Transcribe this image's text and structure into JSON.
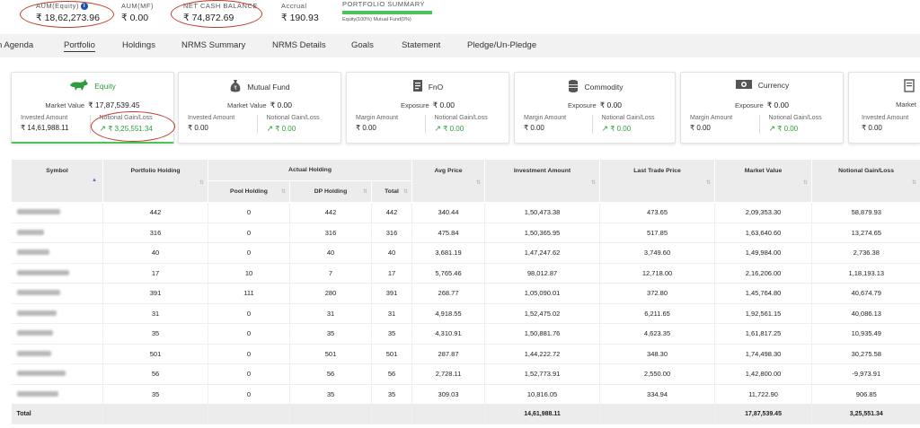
{
  "summary": {
    "aum_equity_label": "AUM(Equity)",
    "aum_equity_value": "₹ 18,62,273.96",
    "aum_mf_label": "AUM(MF)",
    "aum_mf_value": "₹ 0.00",
    "net_cash_label": "NET CASH BALANCE",
    "net_cash_value": "₹ 74,872.69",
    "accrual_label": "Accrual",
    "accrual_value": "₹ 190.93",
    "portfolio_summary_label": "PORTFOLIO SUMMARY",
    "portfolio_summary_legend": "Equity(100%)   Mutual Fund(0%)",
    "equity_share": 1.0
  },
  "tabs": [
    "n Agenda",
    "Portfolio",
    "Holdings",
    "NRMS Summary",
    "NRMS Details",
    "Goals",
    "Statement",
    "Pledge/Un-Pledge"
  ],
  "active_tab": "Portfolio",
  "cards": [
    {
      "title": "Equity",
      "icon": "bull-icon",
      "mv_label": "Market Value",
      "mv_value": "₹ 17,87,539.45",
      "left_label": "Invested Amount",
      "left_value": "₹ 14,61,988.11",
      "right_label": "Notional Gain/Loss",
      "right_value": "₹ 3,25,551.34"
    },
    {
      "title": "Mutual Fund",
      "icon": "money-bag-icon",
      "mv_label": "Market Value",
      "mv_value": "₹ 0.00",
      "left_label": "Invested Amount",
      "left_value": "₹ 0.00",
      "right_label": "Notional Gain/Loss",
      "right_value": "₹ 0.00"
    },
    {
      "title": "FnO",
      "icon": "document-icon",
      "mv_label": "Exposure",
      "mv_value": "₹ 0.00",
      "left_label": "Margin Amount",
      "left_value": "₹ 0.00",
      "right_label": "Notional Gain/Loss",
      "right_value": "₹ 0.00"
    },
    {
      "title": "Commodity",
      "icon": "coin-stack-icon",
      "mv_label": "Exposure",
      "mv_value": "₹ 0.00",
      "left_label": "Margin Amount",
      "left_value": "₹ 0.00",
      "right_label": "Notional Gain/Loss",
      "right_value": "₹ 0.00"
    },
    {
      "title": "Currency",
      "icon": "banknote-icon",
      "mv_label": "Exposure",
      "mv_value": "₹ 0.00",
      "left_label": "Margin Amount",
      "left_value": "₹ 0.00",
      "right_label": "Notional Gain/Loss",
      "right_value": "₹ 0.00"
    },
    {
      "title": "",
      "icon": "document-icon",
      "mv_label": "Market",
      "mv_value": "",
      "left_label": "Invested Amount",
      "left_value": "₹ 0.00",
      "right_label": "",
      "right_value": ""
    }
  ],
  "table": {
    "headers": {
      "symbol": "Symbol",
      "portfolio_holding": "Portfolio Holding",
      "actual_holding": "Actual Holding",
      "pool_holding": "Pool Holding",
      "dp_holding": "DP Holding",
      "total": "Total",
      "avg_price": "Avg Price",
      "investment_amount": "Investment Amount",
      "ltp": "Last Trade Price",
      "market_value": "Market Value",
      "notional": "Notional Gain/Loss"
    },
    "rows": [
      [
        "442",
        "0",
        "442",
        "442",
        "340.44",
        "1,50,473.38",
        "473.65",
        "2,09,353.30",
        "58,879.93"
      ],
      [
        "316",
        "0",
        "316",
        "316",
        "475.84",
        "1,50,365.95",
        "517.85",
        "1,63,640.60",
        "13,274.65"
      ],
      [
        "40",
        "0",
        "40",
        "40",
        "3,681.19",
        "1,47,247.62",
        "3,749.60",
        "1,49,984.00",
        "2,736.38"
      ],
      [
        "17",
        "10",
        "7",
        "17",
        "5,765.46",
        "98,012.87",
        "12,718.00",
        "2,16,206.00",
        "1,18,193.13"
      ],
      [
        "391",
        "111",
        "280",
        "391",
        "268.77",
        "1,05,090.01",
        "372.80",
        "1,45,764.80",
        "40,674.79"
      ],
      [
        "31",
        "0",
        "31",
        "31",
        "4,918.55",
        "1,52,475.02",
        "6,211.65",
        "1,92,561.15",
        "40,086.13"
      ],
      [
        "35",
        "0",
        "35",
        "35",
        "4,310.91",
        "1,50,881.76",
        "4,623.35",
        "1,61,817.25",
        "10,935.49"
      ],
      [
        "501",
        "0",
        "501",
        "501",
        "287.87",
        "1,44,222.72",
        "348.30",
        "1,74,498.30",
        "30,275.58"
      ],
      [
        "56",
        "0",
        "56",
        "56",
        "2,728.11",
        "1,52,773.91",
        "2,550.00",
        "1,42,800.00",
        "-9,973.91"
      ],
      [
        "35",
        "0",
        "35",
        "35",
        "309.03",
        "10,816.05",
        "334.94",
        "11,722.90",
        "906.85"
      ]
    ],
    "total_label": "Total",
    "total_investment": "14,61,988.11",
    "total_market_value": "17,87,539.45",
    "total_notional": "3,25,551.34"
  },
  "colors": {
    "accent_green": "#4cc25a",
    "annotation_red": "#c0392b",
    "info_blue": "#1a4fb5"
  }
}
